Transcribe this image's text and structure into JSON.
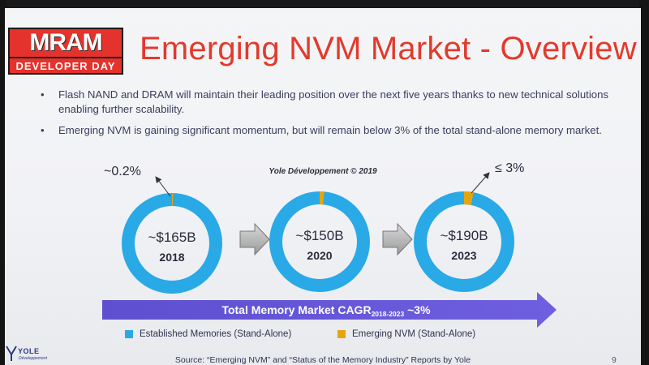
{
  "logo": {
    "top": "MRAM",
    "bottom": "DEVELOPER DAY"
  },
  "title": "Emerging NVM Market - Overview",
  "bullets": [
    "Flash NAND and DRAM will maintain their leading position over the next five years thanks to new technical solutions enabling further scalability.",
    "Emerging NVM is gaining significant momentum, but will remain below 3% of the total stand-alone memory market."
  ],
  "watermark": "Yole Développement © 2019",
  "colors": {
    "established": "#29a9e6",
    "emerging": "#e6a50f",
    "title": "#e23a2c",
    "cagr_bar": "#6a5ad8"
  },
  "chart_data": {
    "type": "pie",
    "donuts": [
      {
        "year": "2018",
        "total": "~$165B",
        "emerging_share": 0.2,
        "share_label": "~0.2%"
      },
      {
        "year": "2020",
        "total": "~$150B",
        "emerging_share": 1.5,
        "share_label": ""
      },
      {
        "year": "2023",
        "total": "~$190B",
        "emerging_share": 3,
        "share_label": "≤ 3%"
      }
    ],
    "series": [
      {
        "name": "Established Memories (Stand-Alone)"
      },
      {
        "name": "Emerging NVM (Stand-Alone)"
      }
    ]
  },
  "cagr": {
    "prefix": "Total Memory Market CAGR",
    "sub": "2018-2023",
    "suffix": " ~3%"
  },
  "legend": {
    "established": "Established Memories (Stand-Alone)",
    "emerging": "Emerging NVM (Stand-Alone)"
  },
  "source": "Source: “Emerging NVM” and “Status of the Memory Industry” Reports by Yole",
  "page_number": "9",
  "footer_logo": {
    "name": "YOLE",
    "sub": "Développement"
  }
}
